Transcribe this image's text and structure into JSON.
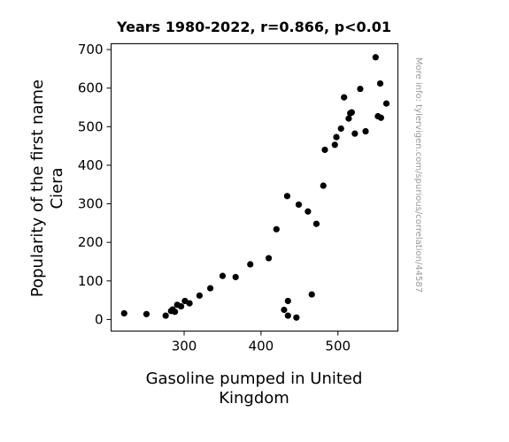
{
  "chart_data": {
    "type": "scatter",
    "title": "Years 1980-2022, r=0.866, p<0.01",
    "xlabel_lines": [
      "Gasoline pumped in United",
      "Kingdom"
    ],
    "ylabel_lines": [
      "Popularity of the first name",
      "Ciera"
    ],
    "side_note": "More info: tylervigen.com/spurious/correlation/44587",
    "xlim": [
      205,
      578
    ],
    "ylim": [
      -30,
      715
    ],
    "xticks": [
      300,
      400,
      500
    ],
    "yticks": [
      0,
      100,
      200,
      300,
      400,
      500,
      600,
      700
    ],
    "grid": false,
    "marker_color": "#000000",
    "points": [
      [
        222,
        16
      ],
      [
        251,
        14
      ],
      [
        276,
        10
      ],
      [
        283,
        22
      ],
      [
        285,
        26
      ],
      [
        288,
        20
      ],
      [
        291,
        38
      ],
      [
        296,
        34
      ],
      [
        301,
        48
      ],
      [
        307,
        42
      ],
      [
        320,
        62
      ],
      [
        334,
        81
      ],
      [
        350,
        113
      ],
      [
        367,
        110
      ],
      [
        386,
        143
      ],
      [
        410,
        159
      ],
      [
        420,
        234
      ],
      [
        430,
        25
      ],
      [
        434,
        320
      ],
      [
        435,
        48
      ],
      [
        435,
        10
      ],
      [
        446,
        5
      ],
      [
        449,
        298
      ],
      [
        461,
        280
      ],
      [
        466,
        65
      ],
      [
        472,
        248
      ],
      [
        481,
        347
      ],
      [
        483,
        440
      ],
      [
        496,
        453
      ],
      [
        498,
        473
      ],
      [
        504,
        495
      ],
      [
        508,
        576
      ],
      [
        514,
        521
      ],
      [
        516,
        535
      ],
      [
        518,
        537
      ],
      [
        522,
        482
      ],
      [
        529,
        598
      ],
      [
        536,
        488
      ],
      [
        549,
        680
      ],
      [
        552,
        527
      ],
      [
        555,
        612
      ],
      [
        556,
        523
      ],
      [
        563,
        560
      ]
    ]
  }
}
